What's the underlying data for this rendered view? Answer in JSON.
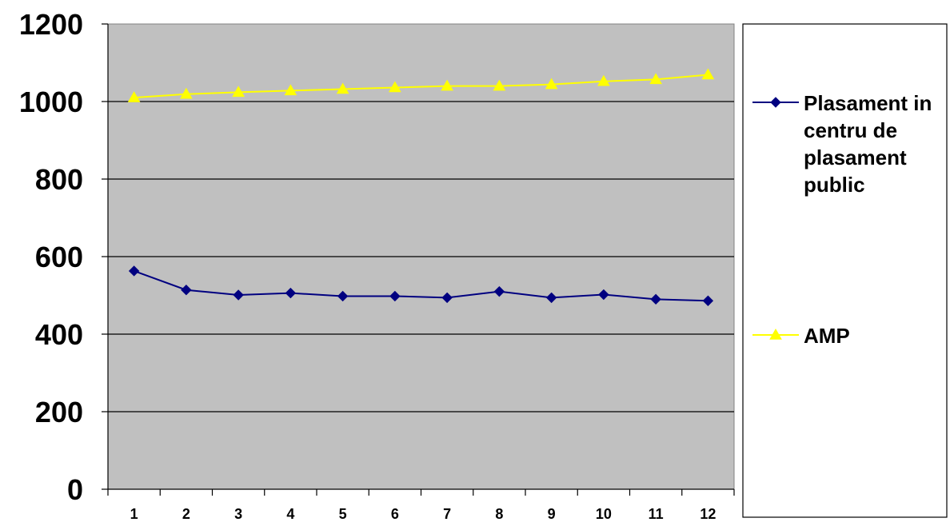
{
  "chart_data": {
    "type": "line",
    "title": "",
    "xlabel": "",
    "ylabel": "",
    "categories": [
      "1",
      "2",
      "3",
      "4",
      "5",
      "6",
      "7",
      "8",
      "9",
      "10",
      "11",
      "12"
    ],
    "ylim": [
      0,
      1200
    ],
    "yticks": [
      "0",
      "200",
      "400",
      "600",
      "800",
      "1000",
      "1200"
    ],
    "grid": true,
    "legend_position": "right",
    "plot_background": "#c0c0c0",
    "series": [
      {
        "name": "Plasament in centru de plasament public",
        "legend_lines": [
          "Plasament in",
          "centru de",
          "plasament",
          "public"
        ],
        "color": "#000080",
        "marker": "diamond",
        "values": [
          563,
          514,
          501,
          506,
          498,
          498,
          494,
          510,
          494,
          502,
          490,
          486
        ]
      },
      {
        "name": "AMP",
        "legend_lines": [
          "AMP"
        ],
        "color": "#ffff00",
        "marker": "triangle",
        "values": [
          1010,
          1019,
          1024,
          1028,
          1032,
          1036,
          1040,
          1040,
          1044,
          1052,
          1057,
          1069
        ]
      }
    ]
  }
}
